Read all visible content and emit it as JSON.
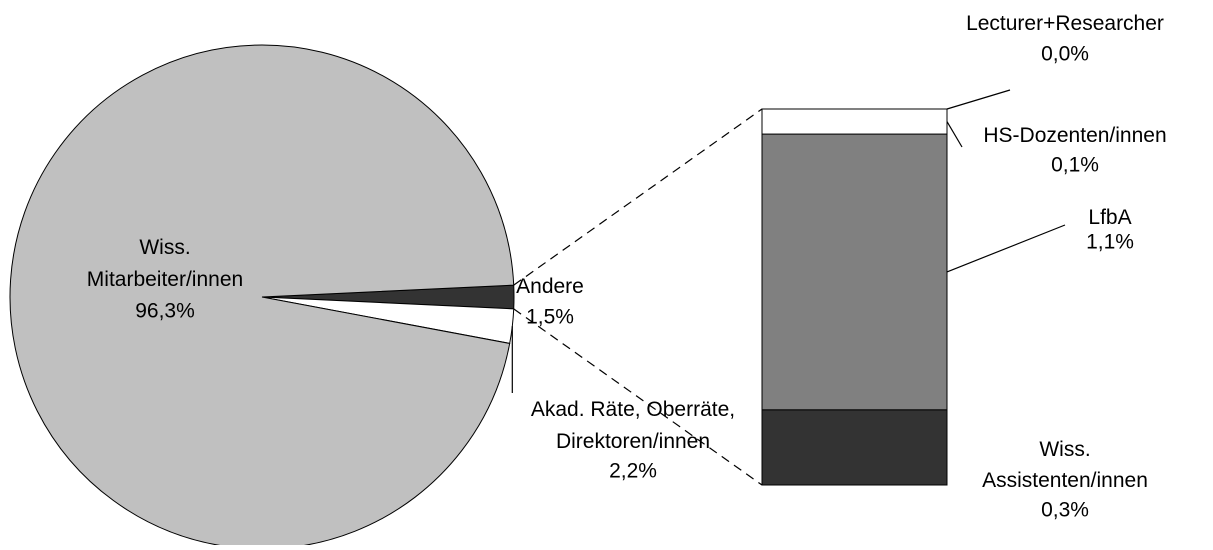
{
  "chart_data": {
    "type": "pie",
    "categories": [
      "Wiss.\nMitarbeiter/innen",
      "Akad. Räte, Oberräte,\nDirektoren/innen",
      "Andere"
    ],
    "values": [
      96.3,
      2.2,
      1.5
    ],
    "value_labels": [
      "96,3%",
      "2,2%",
      "1,5%"
    ],
    "colors": [
      "#c0c0c0",
      "#ffffff",
      "#333333"
    ],
    "breakdown": {
      "type": "bar",
      "categories": [
        "Wiss.\nAssistenten/innen",
        "LfbA",
        "HS-Dozenten/innen",
        "Lecturer+Researcher"
      ],
      "values": [
        0.3,
        1.1,
        0.1,
        0.0
      ],
      "value_labels": [
        "0,3%",
        "1,1%",
        "0,1%",
        "0,0%"
      ],
      "colors": [
        "#333333",
        "#808080",
        "#ffffff",
        "#ffffff"
      ]
    }
  }
}
